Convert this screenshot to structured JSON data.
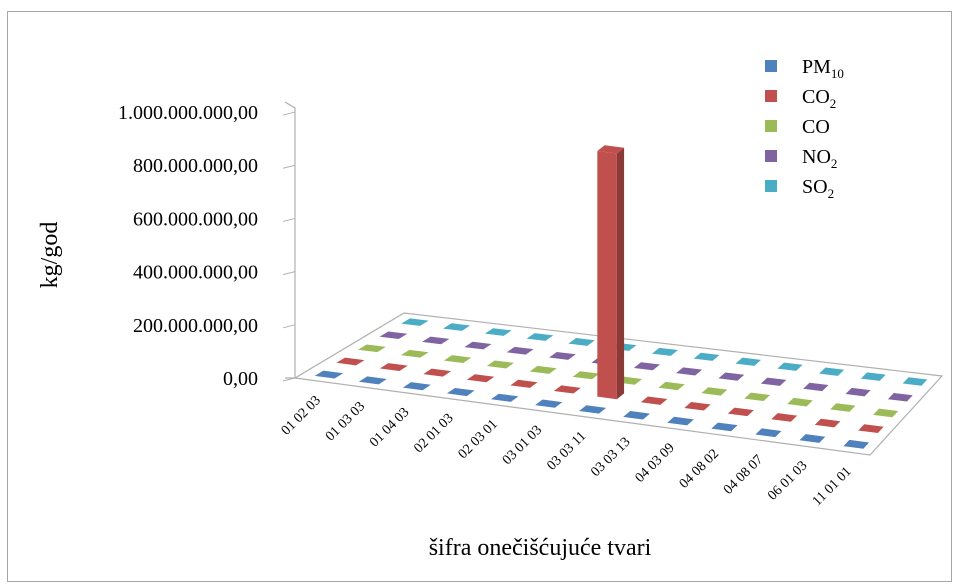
{
  "chart_data": {
    "type": "bar",
    "ylabel": "kg/god",
    "xlabel": "šifra onečišćujuće tvari",
    "ylim": [
      0,
      1000000000
    ],
    "y_ticks": [
      "0,00",
      "200.000.000,00",
      "400.000.000,00",
      "600.000.000,00",
      "800.000.000,00",
      "1.000.000.000,00"
    ],
    "y_tick_values": [
      0,
      200000000,
      400000000,
      600000000,
      800000000,
      1000000000
    ],
    "categories": [
      "01 02 03",
      "01 03 03",
      "01 04 03",
      "02 01 03",
      "02 03 01",
      "03 01 03",
      "03 03 11",
      "03 03 13",
      "04 03 09",
      "04 08 02",
      "04 08 07",
      "06 01 03",
      "11 01 01"
    ],
    "legend_position": "top-right",
    "series": [
      {
        "name": "PM",
        "sub": "10",
        "color": "#4f81bd",
        "values": [
          0,
          0,
          0,
          0,
          0,
          0,
          0,
          0,
          0,
          0,
          0,
          0,
          0
        ]
      },
      {
        "name": "CO",
        "sub": "2",
        "color": "#c0504d",
        "values": [
          0,
          0,
          0,
          0,
          0,
          0,
          910000000,
          0,
          0,
          0,
          0,
          0,
          0
        ]
      },
      {
        "name": "CO",
        "sub": "",
        "color": "#9bbb59",
        "values": [
          0,
          0,
          0,
          0,
          0,
          0,
          0,
          0,
          0,
          0,
          0,
          0,
          0
        ]
      },
      {
        "name": "NO",
        "sub": "2",
        "color": "#8064a2",
        "values": [
          0,
          0,
          0,
          0,
          0,
          0,
          0,
          0,
          0,
          0,
          0,
          0,
          0
        ]
      },
      {
        "name": "SO",
        "sub": "2",
        "color": "#4bacc6",
        "values": [
          0,
          0,
          0,
          0,
          0,
          0,
          0,
          0,
          0,
          0,
          0,
          0,
          0
        ]
      }
    ]
  }
}
